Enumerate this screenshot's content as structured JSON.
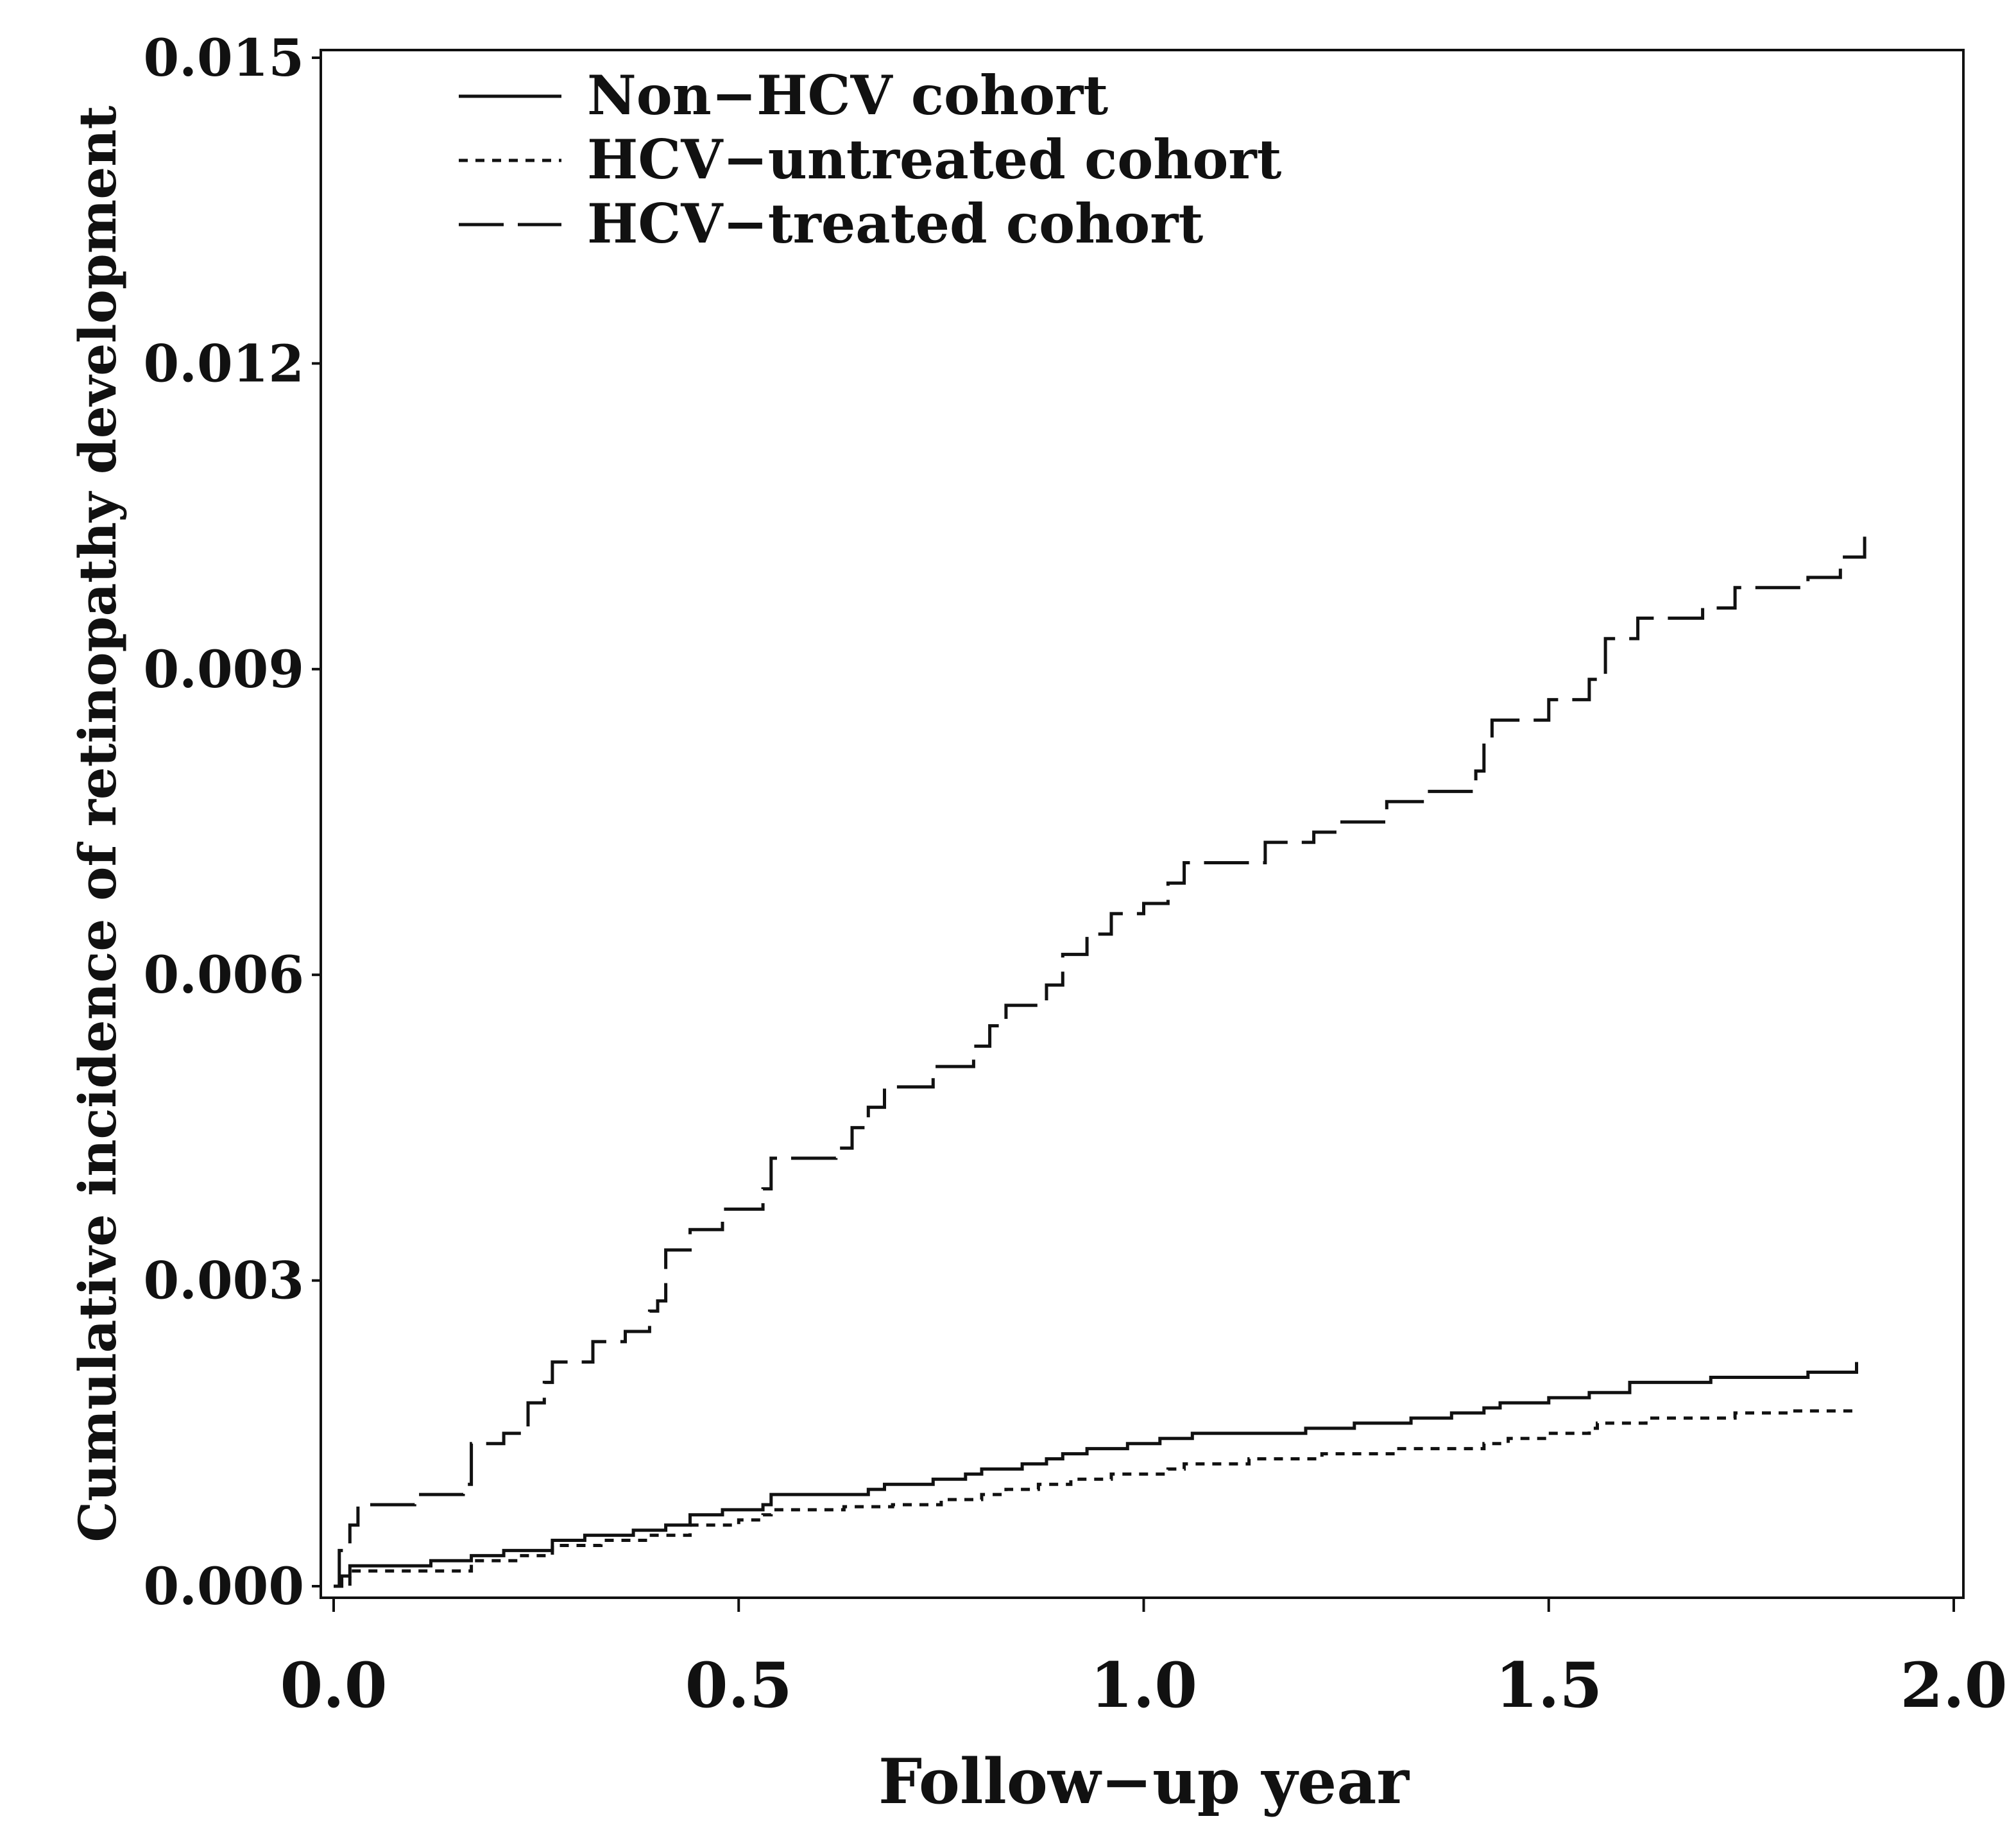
{
  "chart_data": {
    "type": "line",
    "step": true,
    "xlabel": "Follow−up year",
    "ylabel": "Cumulative incidence of retinopathy development",
    "xlim": [
      0,
      2.0
    ],
    "ylim": [
      0,
      0.015
    ],
    "xticks": [
      0.0,
      0.5,
      1.0,
      1.5,
      2.0
    ],
    "xtick_labels": [
      "0.0",
      "0.5",
      "1.0",
      "1.5",
      "2.0"
    ],
    "yticks": [
      0.0,
      0.003,
      0.006,
      0.009,
      0.012,
      0.015
    ],
    "ytick_labels": [
      "0.000",
      "0.003",
      "0.006",
      "0.009",
      "0.012",
      "0.015"
    ],
    "grid": false,
    "legend_position": "top-left",
    "series": [
      {
        "name": "Non−HCV cohort",
        "style": "solid",
        "points": [
          [
            0.0,
            0.0
          ],
          [
            0.01,
            0.0001
          ],
          [
            0.02,
            0.0002
          ],
          [
            0.08,
            0.0002
          ],
          [
            0.12,
            0.00025
          ],
          [
            0.17,
            0.0003
          ],
          [
            0.21,
            0.00035
          ],
          [
            0.27,
            0.00045
          ],
          [
            0.31,
            0.0005
          ],
          [
            0.37,
            0.00055
          ],
          [
            0.41,
            0.0006
          ],
          [
            0.44,
            0.0007
          ],
          [
            0.48,
            0.00075
          ],
          [
            0.53,
            0.0008
          ],
          [
            0.54,
            0.0009
          ],
          [
            0.6,
            0.0009
          ],
          [
            0.66,
            0.00095
          ],
          [
            0.68,
            0.001
          ],
          [
            0.74,
            0.00105
          ],
          [
            0.78,
            0.0011
          ],
          [
            0.8,
            0.00115
          ],
          [
            0.85,
            0.0012
          ],
          [
            0.88,
            0.00125
          ],
          [
            0.9,
            0.0013
          ],
          [
            0.93,
            0.00135
          ],
          [
            0.98,
            0.0014
          ],
          [
            1.02,
            0.00145
          ],
          [
            1.06,
            0.0015
          ],
          [
            1.12,
            0.0015
          ],
          [
            1.2,
            0.00155
          ],
          [
            1.26,
            0.0016
          ],
          [
            1.33,
            0.00165
          ],
          [
            1.38,
            0.0017
          ],
          [
            1.42,
            0.00175
          ],
          [
            1.44,
            0.0018
          ],
          [
            1.5,
            0.00185
          ],
          [
            1.55,
            0.0019
          ],
          [
            1.6,
            0.002
          ],
          [
            1.7,
            0.00205
          ],
          [
            1.82,
            0.0021
          ],
          [
            1.88,
            0.0022
          ]
        ]
      },
      {
        "name": "HCV−untreated cohort",
        "style": "short-dash",
        "points": [
          [
            0.0,
            0.0
          ],
          [
            0.02,
            0.00015
          ],
          [
            0.07,
            0.00015
          ],
          [
            0.13,
            0.00015
          ],
          [
            0.17,
            0.00025
          ],
          [
            0.23,
            0.0003
          ],
          [
            0.27,
            0.0004
          ],
          [
            0.33,
            0.00045
          ],
          [
            0.39,
            0.0005
          ],
          [
            0.44,
            0.0006
          ],
          [
            0.5,
            0.00065
          ],
          [
            0.53,
            0.0007
          ],
          [
            0.54,
            0.00075
          ],
          [
            0.63,
            0.00078
          ],
          [
            0.69,
            0.0008
          ],
          [
            0.75,
            0.00085
          ],
          [
            0.8,
            0.0009
          ],
          [
            0.83,
            0.00095
          ],
          [
            0.87,
            0.001
          ],
          [
            0.91,
            0.00105
          ],
          [
            0.96,
            0.0011
          ],
          [
            1.03,
            0.00115
          ],
          [
            1.05,
            0.0012
          ],
          [
            1.13,
            0.00125
          ],
          [
            1.22,
            0.0013
          ],
          [
            1.31,
            0.00135
          ],
          [
            1.37,
            0.00135
          ],
          [
            1.42,
            0.0014
          ],
          [
            1.45,
            0.00145
          ],
          [
            1.5,
            0.0015
          ],
          [
            1.55,
            0.00155
          ],
          [
            1.56,
            0.0016
          ],
          [
            1.62,
            0.00165
          ],
          [
            1.73,
            0.0017
          ],
          [
            1.8,
            0.00172
          ],
          [
            1.88,
            0.00175
          ]
        ]
      },
      {
        "name": "HCV−treated cohort",
        "style": "long-dash",
        "points": [
          [
            0.0,
            0.0
          ],
          [
            0.007,
            0.00035
          ],
          [
            0.02,
            0.0006
          ],
          [
            0.03,
            0.0008
          ],
          [
            0.06,
            0.0008
          ],
          [
            0.1,
            0.0009
          ],
          [
            0.16,
            0.001
          ],
          [
            0.17,
            0.0014
          ],
          [
            0.21,
            0.0015
          ],
          [
            0.24,
            0.0018
          ],
          [
            0.26,
            0.002
          ],
          [
            0.27,
            0.0022
          ],
          [
            0.31,
            0.0022
          ],
          [
            0.32,
            0.0024
          ],
          [
            0.36,
            0.0025
          ],
          [
            0.39,
            0.0027
          ],
          [
            0.4,
            0.0028
          ],
          [
            0.41,
            0.0033
          ],
          [
            0.44,
            0.0035
          ],
          [
            0.48,
            0.0037
          ],
          [
            0.53,
            0.0039
          ],
          [
            0.54,
            0.0042
          ],
          [
            0.62,
            0.0043
          ],
          [
            0.64,
            0.0045
          ],
          [
            0.66,
            0.0047
          ],
          [
            0.68,
            0.0049
          ],
          [
            0.72,
            0.0049
          ],
          [
            0.74,
            0.0051
          ],
          [
            0.79,
            0.0053
          ],
          [
            0.81,
            0.0055
          ],
          [
            0.83,
            0.0057
          ],
          [
            0.86,
            0.0057
          ],
          [
            0.88,
            0.0059
          ],
          [
            0.9,
            0.0062
          ],
          [
            0.93,
            0.0064
          ],
          [
            0.96,
            0.0066
          ],
          [
            1.0,
            0.0067
          ],
          [
            1.03,
            0.0069
          ],
          [
            1.05,
            0.0071
          ],
          [
            1.12,
            0.0071
          ],
          [
            1.15,
            0.0073
          ],
          [
            1.21,
            0.0074
          ],
          [
            1.24,
            0.0075
          ],
          [
            1.3,
            0.0077
          ],
          [
            1.35,
            0.0078
          ],
          [
            1.41,
            0.008
          ],
          [
            1.42,
            0.0083
          ],
          [
            1.43,
            0.0085
          ],
          [
            1.5,
            0.0087
          ],
          [
            1.55,
            0.0089
          ],
          [
            1.57,
            0.0093
          ],
          [
            1.61,
            0.0095
          ],
          [
            1.69,
            0.0096
          ],
          [
            1.73,
            0.0098
          ],
          [
            1.82,
            0.0099
          ],
          [
            1.86,
            0.0101
          ],
          [
            1.89,
            0.0103
          ]
        ]
      }
    ]
  }
}
